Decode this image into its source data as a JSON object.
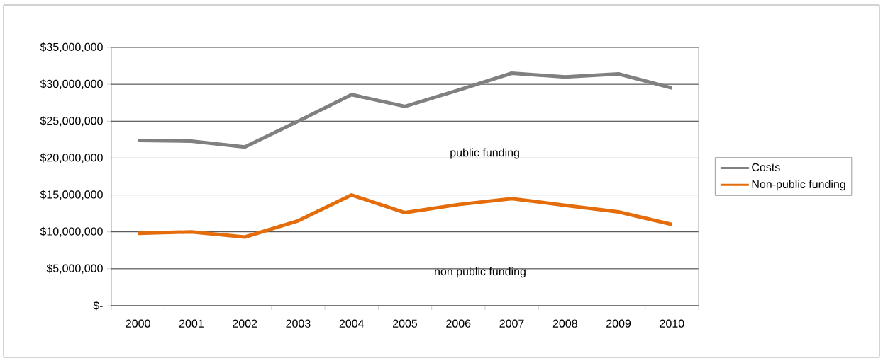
{
  "chart_data": {
    "type": "line",
    "categories": [
      "2000",
      "2001",
      "2002",
      "2003",
      "2004",
      "2005",
      "2006",
      "2007",
      "2008",
      "2009",
      "2010"
    ],
    "series": [
      {
        "name": "Costs",
        "color": "#808080",
        "values": [
          22400000,
          22300000,
          21500000,
          25000000,
          28600000,
          27000000,
          29200000,
          31500000,
          31000000,
          31400000,
          29500000
        ]
      },
      {
        "name": "Non-public funding",
        "color": "#e46c0a",
        "values": [
          9800000,
          10000000,
          9300000,
          11500000,
          15000000,
          12600000,
          13700000,
          14500000,
          13600000,
          12700000,
          11000000
        ]
      }
    ],
    "ylim": [
      0,
      35000000
    ],
    "yticks": [
      {
        "value": 0,
        "label": "$-"
      },
      {
        "value": 5000000,
        "label": "$5,000,000"
      },
      {
        "value": 10000000,
        "label": "$10,000,000"
      },
      {
        "value": 15000000,
        "label": "$15,000,000"
      },
      {
        "value": 20000000,
        "label": "$20,000,000"
      },
      {
        "value": 25000000,
        "label": "$25,000,000"
      },
      {
        "value": 30000000,
        "label": "$30,000,000"
      },
      {
        "value": 35000000,
        "label": "$35,000,000"
      }
    ],
    "annotations": [
      "public funding",
      "non public funding"
    ],
    "grid": "y",
    "legend": "right",
    "marker": "none",
    "line_style": "solid"
  }
}
